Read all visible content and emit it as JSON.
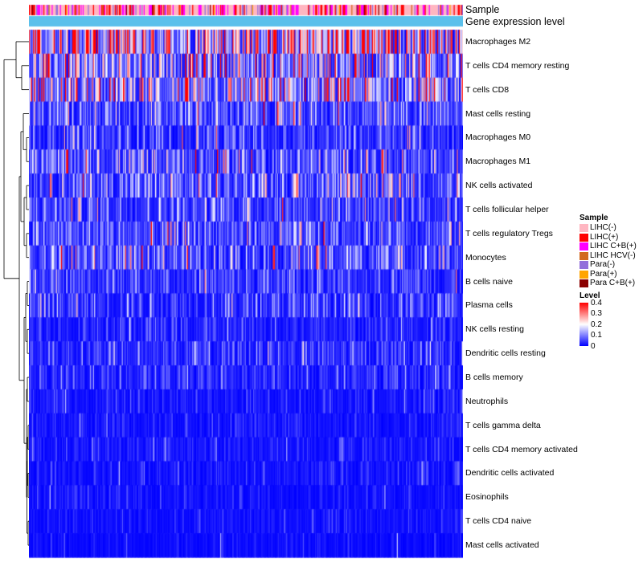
{
  "chart_data": {
    "type": "heatmap",
    "annotations": [
      "Sample",
      "Gene expression level"
    ],
    "rows": [
      "Macrophages M2",
      "T cells CD4 memory resting",
      "T cells CD8",
      "Mast cells resting",
      "Macrophages M0",
      "Macrophages M1",
      "NK cells activated",
      "T cells follicular helper",
      "T cells regulatory  Tregs",
      "Monocytes",
      "B cells naive",
      "Plasma cells",
      "NK cells resting",
      "Dendritic cells resting",
      "B cells memory",
      "Neutrophils",
      "T cells gamma delta",
      "T cells CD4 memory activated",
      "Dendritic cells activated",
      "Eosinophils",
      "T cells CD4 naive",
      "Mast cells activated"
    ],
    "row_mean_level": [
      0.24,
      0.14,
      0.15,
      0.07,
      0.05,
      0.08,
      0.08,
      0.07,
      0.07,
      0.08,
      0.05,
      0.05,
      0.03,
      0.04,
      0.03,
      0.02,
      0.02,
      0.02,
      0.02,
      0.015,
      0.015,
      0.01
    ],
    "n_samples": 420,
    "color_scale": {
      "min": 0,
      "max": 0.4,
      "low": "#0000ff",
      "mid": "#ffffff",
      "high": "#ff0000"
    }
  },
  "legend": {
    "sample_title": "Sample",
    "sample_items": [
      {
        "label": "LIHC(-)",
        "color": "#ffb6c1"
      },
      {
        "label": "LIHC(+)",
        "color": "#ff0000"
      },
      {
        "label": "LIHC C+B(+)",
        "color": "#ff00ff"
      },
      {
        "label": "LIHC HCV(-)",
        "color": "#d2691e"
      },
      {
        "label": "Para(-)",
        "color": "#9370db"
      },
      {
        "label": "Para(+)",
        "color": "#ffa500"
      },
      {
        "label": "Para C+B(+)",
        "color": "#8b0000"
      }
    ],
    "level_title": "Level",
    "level_ticks": [
      "0.4",
      "0.3",
      "0.2",
      "0.1",
      "0"
    ],
    "expression_color": "#5bc0eb"
  }
}
